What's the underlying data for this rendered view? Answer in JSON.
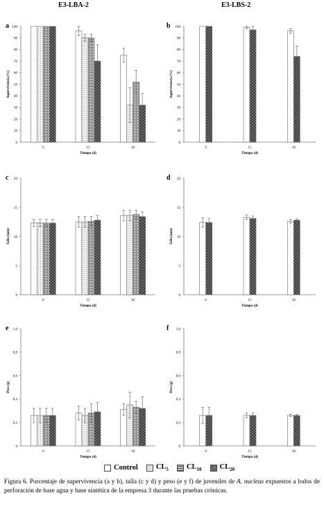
{
  "headers": {
    "left": "E3-LBA-2",
    "right": "E3-LBS-2"
  },
  "legend": [
    {
      "label": "Control",
      "pattern": "white"
    },
    {
      "label": "CL5",
      "pattern": "dots"
    },
    {
      "label": "CL10",
      "pattern": "grid"
    },
    {
      "label": "CL20",
      "pattern": "cross"
    }
  ],
  "caption": "Figura 6. Porcentaje de supervivencia (a y b), talla (c y d) y peso (e y f) de juveniles de A. nucleus expuestos a lodos de perforación de base agua y base sintética de la empresa 3 durante las pruebas crónicas.",
  "chart_data": [
    {
      "panel": "a",
      "type": "bar",
      "xlabel": "Tiempo (d)",
      "ylabel": "Supervivencia (%)",
      "categories": [
        "0",
        "15",
        "30"
      ],
      "ylim": [
        0,
        100
      ],
      "yticks": [
        "0",
        "10",
        "20",
        "30",
        "40",
        "50",
        "60",
        "70",
        "80",
        "90",
        "100"
      ],
      "series": [
        {
          "name": "Control",
          "values": [
            100,
            96,
            75
          ],
          "errors": [
            0,
            4,
            6
          ]
        },
        {
          "name": "CL5",
          "values": [
            100,
            90,
            32
          ],
          "errors": [
            0,
            3,
            15
          ]
        },
        {
          "name": "CL10",
          "values": [
            100,
            90,
            52
          ],
          "errors": [
            0,
            3,
            10
          ]
        },
        {
          "name": "CL20",
          "values": [
            100,
            70,
            32
          ],
          "errors": [
            0,
            14,
            10
          ]
        }
      ]
    },
    {
      "panel": "b",
      "type": "bar",
      "xlabel": "Tiempo (d)",
      "ylabel": "Supervivencia (%)",
      "categories": [
        "0",
        "15",
        "30"
      ],
      "ylim": [
        0,
        100
      ],
      "yticks": [
        "0",
        "10",
        "20",
        "30",
        "40",
        "50",
        "60",
        "70",
        "80",
        "90",
        "100"
      ],
      "series": [
        {
          "name": "Control",
          "values": [
            100,
            99,
            96
          ],
          "errors": [
            0,
            1,
            2
          ]
        },
        {
          "name": "CL20",
          "values": [
            100,
            97,
            74
          ],
          "errors": [
            0,
            3,
            9
          ]
        }
      ]
    },
    {
      "panel": "c",
      "type": "bar",
      "xlabel": "Tiempo (d)",
      "ylabel": "Talla (mm)",
      "categories": [
        "0",
        "15",
        "30"
      ],
      "ylim": [
        0,
        20
      ],
      "yticks": [
        "0",
        "5",
        "10",
        "15",
        "20"
      ],
      "series": [
        {
          "name": "Control",
          "values": [
            12.3,
            12.5,
            13.6
          ],
          "errors": [
            0.6,
            0.9,
            0.9
          ]
        },
        {
          "name": "CL5",
          "values": [
            12.3,
            12.5,
            13.6
          ],
          "errors": [
            0.6,
            0.9,
            0.9
          ]
        },
        {
          "name": "CL10",
          "values": [
            12.3,
            12.6,
            13.8
          ],
          "errors": [
            0.6,
            0.8,
            0.7
          ]
        },
        {
          "name": "CL20",
          "values": [
            12.3,
            12.8,
            13.4
          ],
          "errors": [
            0.6,
            0.8,
            0.8
          ]
        }
      ]
    },
    {
      "panel": "d",
      "type": "bar",
      "xlabel": "Tiempo (d)",
      "ylabel": "Talla (mm)",
      "categories": [
        "0",
        "15",
        "30"
      ],
      "ylim": [
        0,
        20
      ],
      "yticks": [
        "0",
        "5",
        "10",
        "15",
        "20"
      ],
      "series": [
        {
          "name": "Control",
          "values": [
            12.4,
            13.3,
            12.6
          ],
          "errors": [
            0.8,
            0.4,
            0.3
          ]
        },
        {
          "name": "CL20",
          "values": [
            12.4,
            13.1,
            12.8
          ],
          "errors": [
            0.7,
            0.4,
            0.2
          ]
        }
      ]
    },
    {
      "panel": "e",
      "type": "bar",
      "xlabel": "Tiempo (d)",
      "ylabel": "Peso (g)",
      "categories": [
        "0",
        "15",
        "30"
      ],
      "ylim": [
        0,
        1.0
      ],
      "yticks": [
        "0",
        "0,2",
        "0,4",
        "0,6",
        "0,8",
        "1,0"
      ],
      "series": [
        {
          "name": "Control",
          "values": [
            0.26,
            0.28,
            0.31
          ],
          "errors": [
            0.06,
            0.06,
            0.05
          ]
        },
        {
          "name": "CL5",
          "values": [
            0.26,
            0.26,
            0.35
          ],
          "errors": [
            0.06,
            0.06,
            0.11
          ]
        },
        {
          "name": "CL10",
          "values": [
            0.26,
            0.28,
            0.33
          ],
          "errors": [
            0.06,
            0.08,
            0.05
          ]
        },
        {
          "name": "CL20",
          "values": [
            0.26,
            0.29,
            0.32
          ],
          "errors": [
            0.06,
            0.08,
            0.1
          ]
        }
      ]
    },
    {
      "panel": "f",
      "type": "bar",
      "xlabel": "Tiempo (d)",
      "ylabel": "Peso (g)",
      "categories": [
        "0",
        "15",
        "30"
      ],
      "ylim": [
        0,
        1.0
      ],
      "yticks": [
        "0",
        "0,2",
        "0,4",
        "0,6",
        "0,8",
        "1,0"
      ],
      "series": [
        {
          "name": "Control",
          "values": [
            0.26,
            0.26,
            0.26
          ],
          "errors": [
            0.07,
            0.02,
            0.01
          ]
        },
        {
          "name": "CL20",
          "values": [
            0.26,
            0.26,
            0.26
          ],
          "errors": [
            0.07,
            0.02,
            0.01
          ]
        }
      ]
    }
  ]
}
